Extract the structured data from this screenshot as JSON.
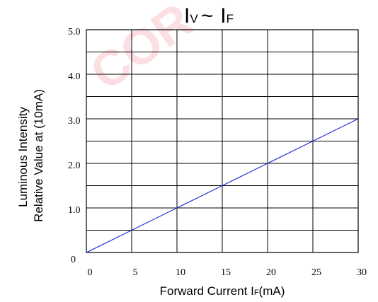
{
  "colors": {
    "line": "#1f2fd6",
    "watermark": "#e8001c",
    "grid": "#000000"
  },
  "chart_data": {
    "type": "line",
    "title": {
      "main_left": "I",
      "sub_left": "V",
      "separator": "~",
      "main_right": "I",
      "sub_right": "F"
    },
    "xlabel": {
      "text": "Forward Current I",
      "subscript": "F",
      "unit": "(mA)"
    },
    "ylabel": {
      "line1": "Luminous Intensity",
      "line2": "Relative Value at  (10mA)"
    },
    "xlim": [
      0,
      30
    ],
    "ylim": [
      0,
      5
    ],
    "x_ticks": [
      "0",
      "5",
      "10",
      "15",
      "20",
      "25",
      "30"
    ],
    "y_ticks": [
      "0",
      "1.0",
      "2.0",
      "3.0",
      "4.0",
      "5.0"
    ],
    "grid": true,
    "series": [
      {
        "x": [
          0,
          5,
          10,
          15,
          20,
          25,
          30
        ],
        "values": [
          0,
          0.5,
          1.0,
          1.5,
          2.0,
          2.5,
          3.0
        ]
      }
    ]
  }
}
